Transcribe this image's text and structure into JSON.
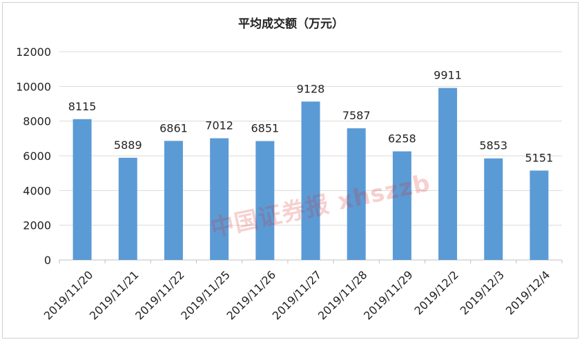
{
  "watermark": "中国证券报 xhszzb",
  "colors": {
    "bar": "#5b9bd5",
    "grid": "#d9d9d9",
    "axis": "#bfbfbf",
    "text": "#222222"
  },
  "chart_data": {
    "type": "bar",
    "title": "平均成交额（万元）",
    "xlabel": "",
    "ylabel": "",
    "ylim": [
      0,
      12000
    ],
    "yticks": [
      0,
      2000,
      4000,
      6000,
      8000,
      10000,
      12000
    ],
    "grid": true,
    "legend": "none",
    "categories": [
      "2019/11/20",
      "2019/11/21",
      "2019/11/22",
      "2019/11/25",
      "2019/11/26",
      "2019/11/27",
      "2019/11/28",
      "2019/11/29",
      "2019/12/2",
      "2019/12/3",
      "2019/12/4"
    ],
    "values": [
      8115,
      5889,
      6861,
      7012,
      6851,
      9128,
      7587,
      6258,
      9911,
      5853,
      5151
    ]
  }
}
